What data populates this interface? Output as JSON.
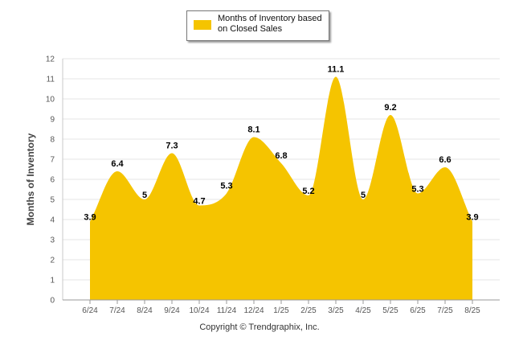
{
  "chart_data": {
    "type": "area",
    "categories": [
      "6/24",
      "7/24",
      "8/24",
      "9/24",
      "10/24",
      "11/24",
      "12/24",
      "1/25",
      "2/25",
      "3/25",
      "4/25",
      "5/25",
      "6/25",
      "7/25",
      "8/25"
    ],
    "series": [
      {
        "name": "Months of Inventory based on Closed Sales",
        "values": [
          3.9,
          6.4,
          5,
          7.3,
          4.7,
          5.3,
          8.1,
          6.8,
          5.2,
          11.1,
          5,
          9.2,
          5.3,
          6.6,
          3.9
        ],
        "color": "#f5c400"
      }
    ],
    "ylabel": "Months of Inventory",
    "ylim": [
      0,
      12
    ],
    "yticks": [
      "0",
      "1",
      "2",
      "3",
      "4",
      "5",
      "6",
      "7",
      "8",
      "9",
      "10",
      "11",
      "12"
    ],
    "grid": true,
    "legend_position": "top-center"
  },
  "legend": {
    "label": "Months of Inventory based on Closed Sales"
  },
  "credit": "Copyright © Trendgraphix, Inc."
}
